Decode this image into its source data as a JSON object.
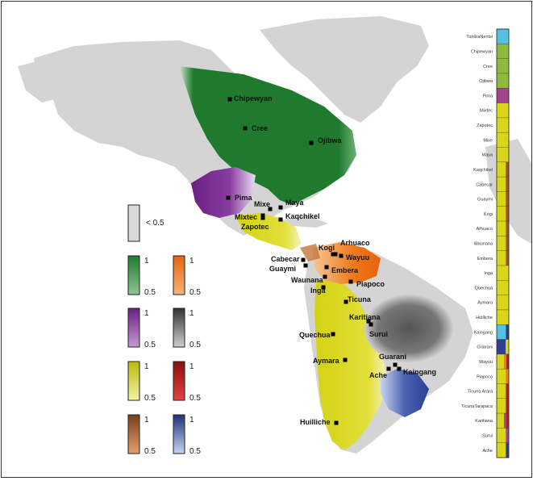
{
  "colors": {
    "land": "#d4d4d4",
    "green": "#1f7a2e",
    "purple": "#7b2d8e",
    "yellow": "#d9d61a",
    "orange": "#ee7a18",
    "gray": "#6a6a6a",
    "red": "#b51e1e",
    "brown": "#9a5a2a",
    "blue": "#2c3f93",
    "cyan": "#56c0e0",
    "magenta": "#a6438f",
    "lightgreen": "#8dbb3d"
  },
  "legend": {
    "below": "< 0.5",
    "max": "1",
    "min": "0.5"
  },
  "populations": [
    {
      "name": "Chipewyan",
      "group": "green"
    },
    {
      "name": "Cree",
      "group": "green"
    },
    {
      "name": "Ojibwa",
      "group": "green"
    },
    {
      "name": "Pima",
      "group": "purple"
    },
    {
      "name": "Mixe",
      "group": "yellow"
    },
    {
      "name": "Maya",
      "group": "yellow"
    },
    {
      "name": "Mixtec",
      "group": "yellow"
    },
    {
      "name": "Kaqchikel",
      "group": "yellow"
    },
    {
      "name": "Zapotec",
      "group": "yellow"
    },
    {
      "name": "Kogi",
      "group": "orange"
    },
    {
      "name": "Arhuaco",
      "group": "orange"
    },
    {
      "name": "Wayuu",
      "group": "orange"
    },
    {
      "name": "Cabecar",
      "group": "orange"
    },
    {
      "name": "Guaymi",
      "group": "orange"
    },
    {
      "name": "Embera",
      "group": "orange"
    },
    {
      "name": "Waunana",
      "group": "orange"
    },
    {
      "name": "Piapoco",
      "group": "yellow"
    },
    {
      "name": "Inga",
      "group": "yellow"
    },
    {
      "name": "Ticuna",
      "group": "yellow"
    },
    {
      "name": "Karitiana",
      "group": "gray"
    },
    {
      "name": "Surui",
      "group": "gray"
    },
    {
      "name": "Quechua",
      "group": "yellow"
    },
    {
      "name": "Aymara",
      "group": "yellow"
    },
    {
      "name": "Guarani",
      "group": "blue"
    },
    {
      "name": "Ache",
      "group": "blue"
    },
    {
      "name": "Kaingang",
      "group": "blue"
    },
    {
      "name": "Huilliche",
      "group": "yellow"
    }
  ],
  "bar_labels": [
    "TundraNentsi",
    "Chipewyan",
    "Cree",
    "Ojibwa",
    "Pima",
    "Mixtec",
    "Zapotec",
    "Mixe",
    "Maya",
    "Kaqchikel",
    "Cabecar",
    "Guaymi",
    "Kogi",
    "Arhuaco",
    "Waunana",
    "Embera",
    "Inga",
    "Quechua",
    "Aymara",
    "Huilliche",
    "Kaingang",
    "Guarani",
    "Wayuu",
    "Piapoco",
    "Ticuna Arara",
    "TicunaTarapaca",
    "Karitiana",
    "Surui",
    "Ache"
  ]
}
